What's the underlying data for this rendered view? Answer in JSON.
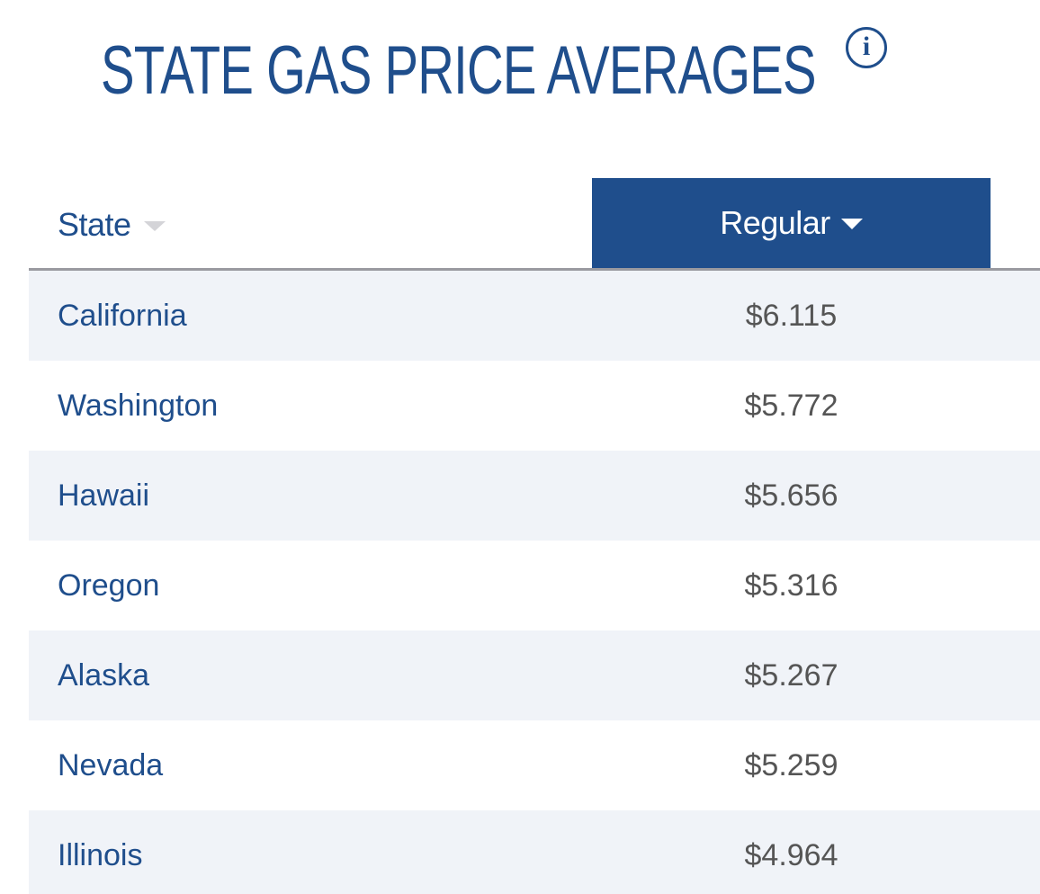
{
  "header": {
    "title": "STATE GAS PRICE AVERAGES",
    "info_icon": "info-icon",
    "info_glyph": "i"
  },
  "colors": {
    "brand_blue": "#1f4e8c",
    "row_stripe": "#f0f3f8",
    "price_text": "#555555"
  },
  "table": {
    "columns": {
      "state": "State",
      "regular": "Regular"
    },
    "sort": {
      "column": "Regular",
      "direction": "descending"
    },
    "rows": [
      {
        "state": "California",
        "regular": "$6.115"
      },
      {
        "state": "Washington",
        "regular": "$5.772"
      },
      {
        "state": "Hawaii",
        "regular": "$5.656"
      },
      {
        "state": "Oregon",
        "regular": "$5.316"
      },
      {
        "state": "Alaska",
        "regular": "$5.267"
      },
      {
        "state": "Nevada",
        "regular": "$5.259"
      },
      {
        "state": "Illinois",
        "regular": "$4.964"
      }
    ]
  }
}
